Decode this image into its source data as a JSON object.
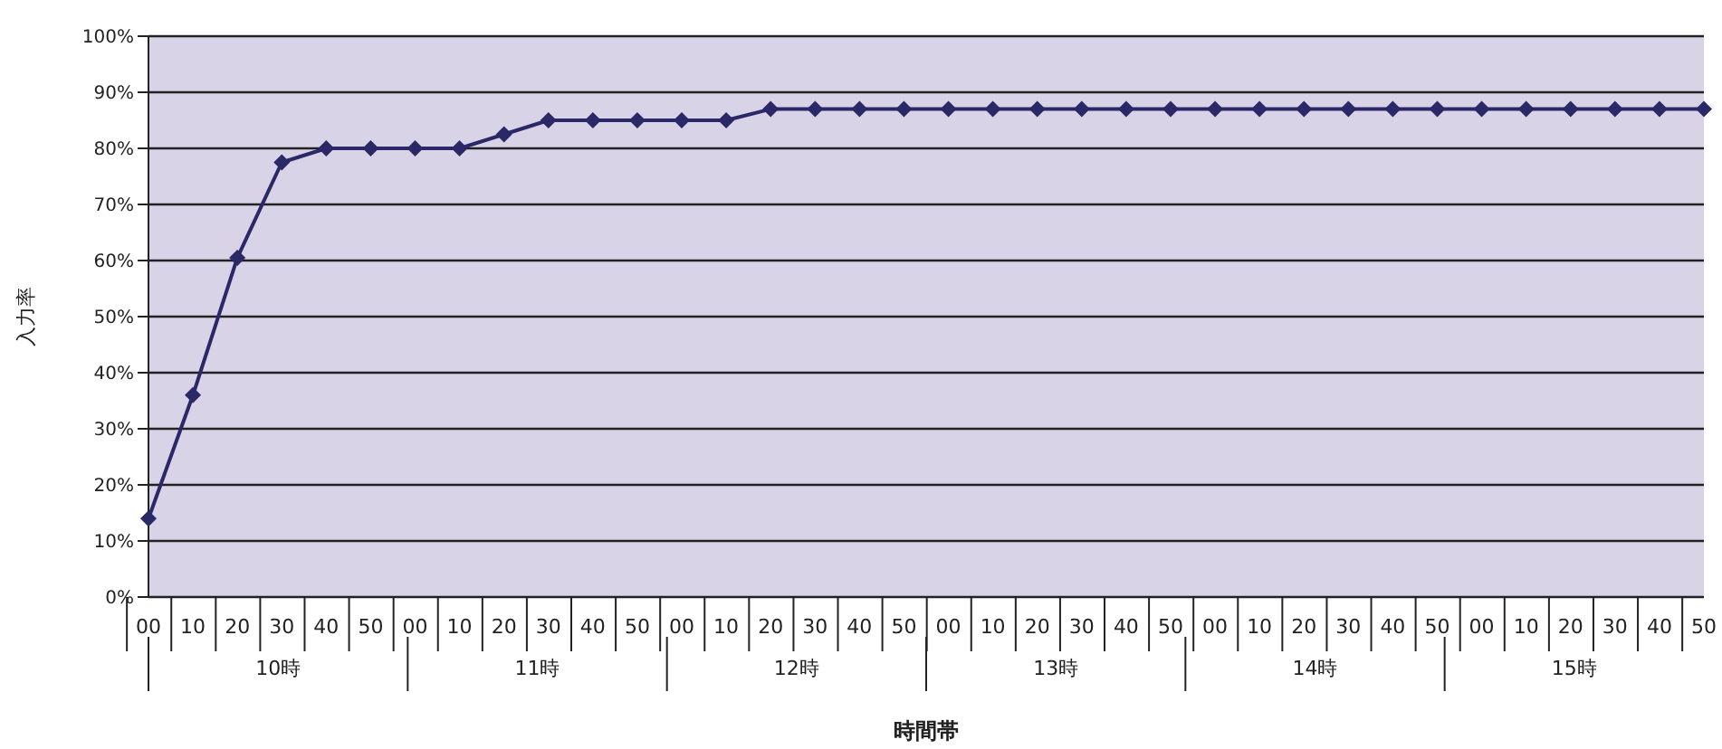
{
  "chart_data": {
    "type": "line",
    "xlabel": "時間帯",
    "ylabel": "入力率",
    "categories": [
      "00",
      "10",
      "20",
      "30",
      "40",
      "50",
      "00",
      "10",
      "20",
      "30",
      "40",
      "50",
      "00",
      "10",
      "20",
      "30",
      "40",
      "50",
      "00",
      "10",
      "20",
      "30",
      "40",
      "50",
      "00",
      "10",
      "20",
      "30",
      "40",
      "50",
      "00",
      "10",
      "20",
      "30",
      "40",
      "50"
    ],
    "series": [
      {
        "color": "#2b2868",
        "values": [
          14,
          36,
          60.5,
          77.5,
          80,
          80,
          80,
          80,
          82.5,
          85,
          85,
          85,
          85,
          85,
          87,
          87,
          87,
          87,
          87,
          87,
          87,
          87,
          87,
          87,
          87,
          87,
          87,
          87,
          87,
          87,
          87,
          87,
          87,
          87,
          87,
          87
        ]
      }
    ],
    "annotations": [
      "10時",
      "11時",
      "12時",
      "13時",
      "14時",
      "15時"
    ],
    "ylim": [
      0,
      100
    ],
    "yticks": [
      {
        "value": 0,
        "label": "0%"
      },
      {
        "value": 10,
        "label": "10%"
      },
      {
        "value": 20,
        "label": "20%"
      },
      {
        "value": 30,
        "label": "30%"
      },
      {
        "value": 40,
        "label": "40%"
      },
      {
        "value": 50,
        "label": "50%"
      },
      {
        "value": 60,
        "label": "60%"
      },
      {
        "value": 70,
        "label": "70%"
      },
      {
        "value": 80,
        "label": "80%"
      },
      {
        "value": 90,
        "label": "90%"
      },
      {
        "value": 100,
        "label": "100%"
      }
    ],
    "grid": "y",
    "marker": "diamond",
    "line_style": "solid"
  }
}
